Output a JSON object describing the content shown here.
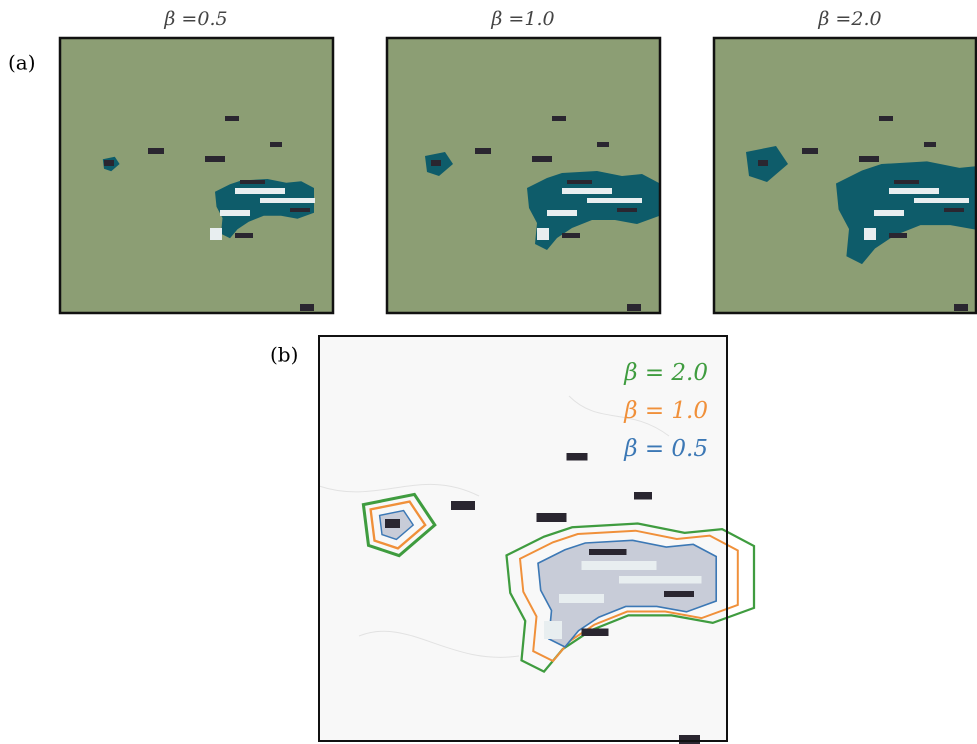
{
  "panel_a": {
    "label": "(a)",
    "titles": [
      "β =0.5",
      "β =1.0",
      "β =2.0"
    ]
  },
  "panel_b": {
    "label": "(b)",
    "legend": [
      {
        "text": "β = 2.0",
        "color": "#3f9c3f"
      },
      {
        "text": "β = 1.0",
        "color": "#f0903a"
      },
      {
        "text": "β = 0.5",
        "color": "#3c78b5"
      }
    ]
  }
}
